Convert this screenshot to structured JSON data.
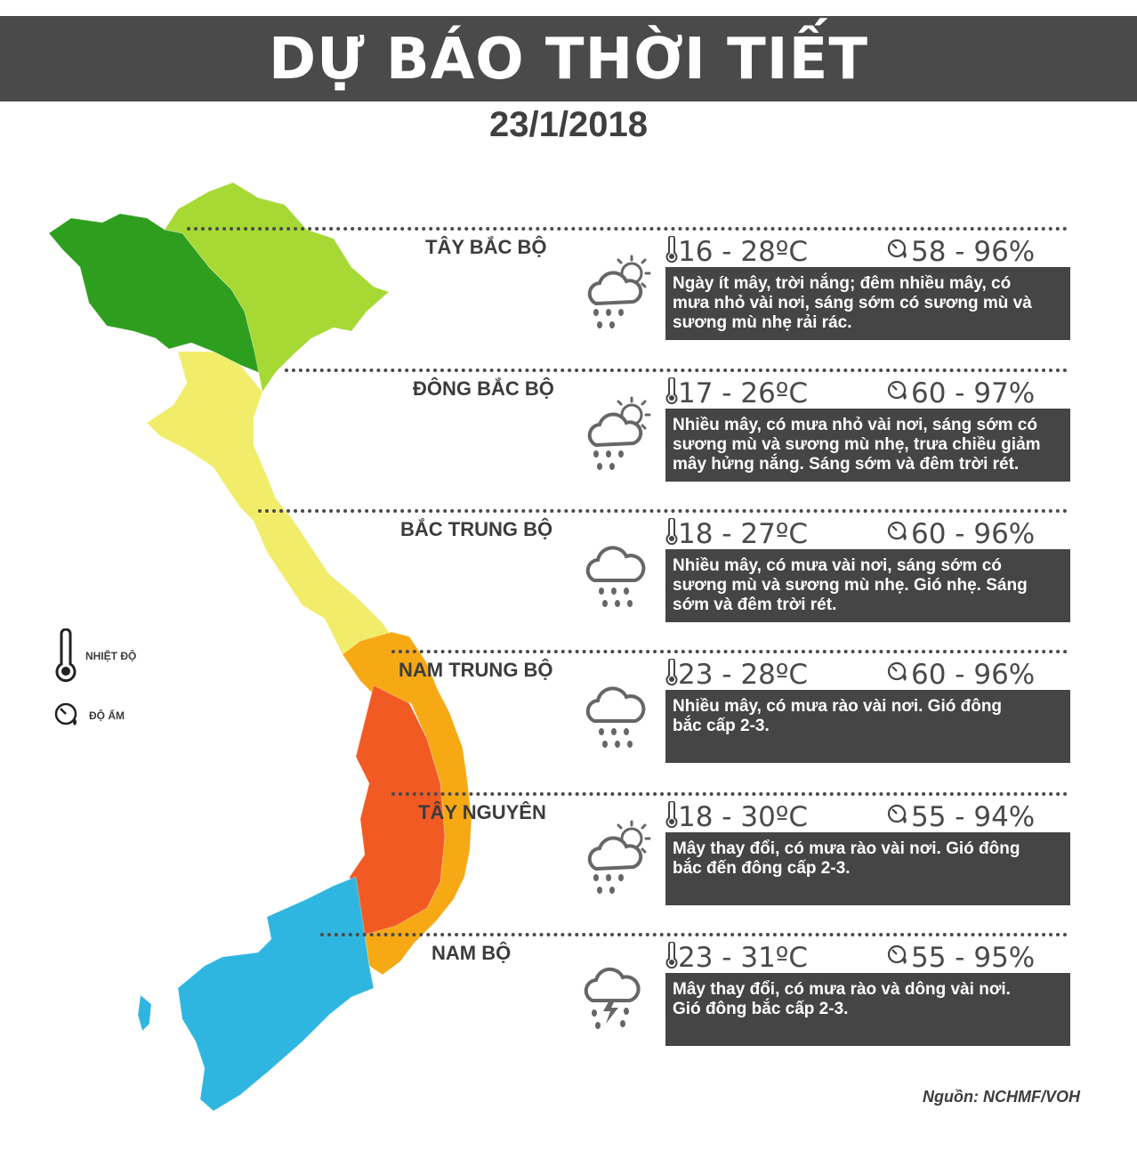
{
  "header": {
    "title": "DỰ BÁO THỜI TIẾT",
    "date": "23/1/2018"
  },
  "legend": {
    "temperature_label": "NHIỆT ĐỘ",
    "humidity_label": "ĐỘ ẨM"
  },
  "regions": [
    {
      "name": "TÂY BẮC BỘ",
      "temp": "16 - 28ºC",
      "humidity": "58 - 96%",
      "icon": "partly-cloudy-rain-icon",
      "lines": [
        "Ngày ít mây, trời nắng; đêm nhiều mây, có",
        "mưa nhỏ vài nơi, sáng sớm có sương mù và",
        "sương mù nhẹ rải rác."
      ]
    },
    {
      "name": "ĐÔNG BẮC BỘ",
      "temp": "17 - 26ºC",
      "humidity": "60 - 97%",
      "icon": "partly-cloudy-rain-icon",
      "lines": [
        "Nhiều mây, có mưa nhỏ vài nơi, sáng sớm có",
        "sương mù và sương mù nhẹ, trưa chiều giảm",
        "mây hửng nắng. Sáng sớm và đêm trời rét."
      ]
    },
    {
      "name": "BẮC TRUNG BỘ",
      "temp": "18 - 27ºC",
      "humidity": "60 - 96%",
      "icon": "cloud-rain-icon",
      "lines": [
        "Nhiều mây, có mưa vài nơi, sáng sớm có",
        "sương mù và sương mù nhẹ. Gió nhẹ. Sáng",
        "sớm và đêm trời rét."
      ]
    },
    {
      "name": "NAM TRUNG BỘ",
      "temp": "23 - 28ºC",
      "humidity": "60 - 96%",
      "icon": "cloud-rain-icon",
      "lines": [
        "Nhiều mây, có mưa rào vài nơi. Gió đông",
        "bắc cấp 2-3."
      ]
    },
    {
      "name": "TÂY NGUYÊN",
      "temp": "18 - 30ºC",
      "humidity": "55 - 94%",
      "icon": "partly-cloudy-rain-icon",
      "lines": [
        "Mây thay đổi, có mưa rào vài nơi. Gió đông",
        "bắc đến đông cấp 2-3."
      ]
    },
    {
      "name": "NAM  BỘ",
      "temp": "23 - 31ºC",
      "humidity": "55 - 95%",
      "icon": "thunderstorm-icon",
      "lines": [
        "Mây thay đổi, có mưa rào và dông vài nơi.",
        "Gió đông bắc cấp 2-3."
      ]
    }
  ],
  "map_colors": {
    "tay_bac": "#2e9e1f",
    "dong_bac": "#a6d934",
    "bac_trung_bo": "#f1ec6a",
    "nam_trung_bo": "#f6a915",
    "tay_nguyen": "#f25a23",
    "nam_bo": "#2fb6e0"
  },
  "source": "Nguồn: NCHMF/VOH"
}
